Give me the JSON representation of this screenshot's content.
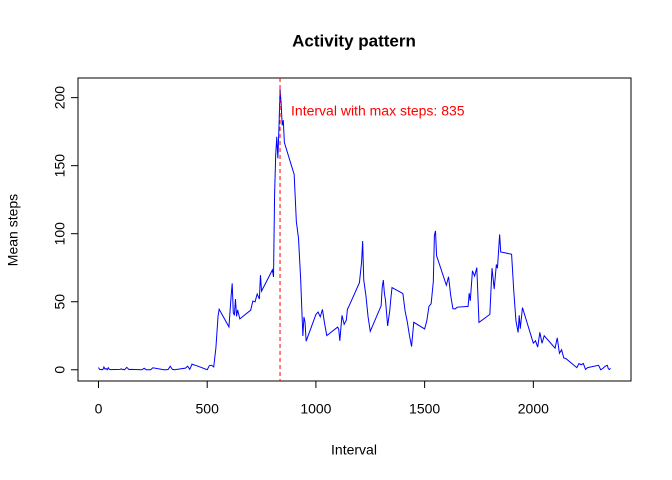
{
  "chart_data": {
    "type": "line",
    "title": "Activity pattern",
    "x_label": "Interval",
    "y_label": "Mean steps",
    "x": [
      0,
      5,
      10,
      15,
      20,
      25,
      30,
      35,
      40,
      45,
      50,
      55,
      100,
      105,
      110,
      115,
      120,
      130,
      140,
      150,
      200,
      210,
      220,
      230,
      240,
      250,
      300,
      310,
      320,
      330,
      340,
      350,
      400,
      410,
      420,
      430,
      440,
      450,
      500,
      510,
      520,
      530,
      540,
      550,
      555,
      600,
      610,
      615,
      620,
      625,
      630,
      635,
      640,
      650,
      700,
      710,
      720,
      730,
      740,
      745,
      750,
      800,
      805,
      810,
      815,
      820,
      825,
      830,
      835,
      840,
      845,
      850,
      855,
      900,
      910,
      920,
      930,
      935,
      940,
      945,
      950,
      955,
      1000,
      1010,
      1020,
      1030,
      1040,
      1050,
      1100,
      1105,
      1110,
      1120,
      1130,
      1140,
      1145,
      1150,
      1200,
      1210,
      1215,
      1220,
      1230,
      1240,
      1250,
      1300,
      1305,
      1310,
      1315,
      1320,
      1330,
      1340,
      1345,
      1350,
      1400,
      1410,
      1420,
      1430,
      1440,
      1450,
      1500,
      1510,
      1520,
      1530,
      1540,
      1545,
      1550,
      1555,
      1600,
      1610,
      1620,
      1630,
      1640,
      1650,
      1700,
      1705,
      1710,
      1720,
      1730,
      1740,
      1750,
      1800,
      1810,
      1820,
      1830,
      1835,
      1845,
      1850,
      1900,
      1910,
      1920,
      1930,
      1935,
      1940,
      1950,
      2000,
      2010,
      2020,
      2030,
      2040,
      2050,
      2100,
      2110,
      2120,
      2130,
      2140,
      2150,
      2200,
      2210,
      2220,
      2230,
      2240,
      2250,
      2300,
      2310,
      2320,
      2330,
      2340,
      2345,
      2350,
      2355
    ],
    "series": [
      {
        "name": "Mean steps",
        "color": "#0000ff",
        "values": [
          1.7,
          0.3,
          0.1,
          0.2,
          0.1,
          2.1,
          0.5,
          0.9,
          0,
          1.5,
          0.3,
          0.1,
          0.3,
          0.7,
          0.2,
          0.3,
          0,
          1.8,
          0.2,
          0.3,
          0,
          1.1,
          0,
          0,
          0,
          1.5,
          0,
          0,
          0.2,
          2.6,
          0.3,
          0,
          1.2,
          2.6,
          0.3,
          4.1,
          3.5,
          3.1,
          0,
          3.0,
          3.3,
          2.1,
          16,
          39.5,
          44.5,
          31.5,
          54,
          63.5,
          42,
          40,
          52,
          39.3,
          44,
          37.4,
          43.8,
          50.5,
          49.9,
          55.7,
          52,
          69.5,
          57.8,
          73.4,
          68.2,
          128.9,
          157.5,
          171.2,
          155.4,
          177.3,
          206.2,
          195.9,
          179.6,
          183.4,
          167,
          143.5,
          109,
          96.5,
          66.2,
          45.2,
          24.8,
          38.8,
          34.9,
          21,
          40.6,
          42.4,
          38.9,
          44.3,
          34,
          25.1,
          31.4,
          29.7,
          21.3,
          40,
          33.4,
          36.5,
          44.6,
          46,
          63.9,
          78.9,
          94.6,
          66,
          54.5,
          38.8,
          28.3,
          47,
          60.8,
          65.9,
          56.2,
          51.2,
          32.2,
          44,
          53,
          60.4,
          56,
          43.3,
          35.5,
          25.4,
          17.1,
          34.9,
          30,
          35.9,
          46.6,
          48.6,
          64.7,
          98.7,
          102.1,
          83.9,
          62.1,
          68.4,
          54.5,
          44.9,
          44.7,
          46,
          46.6,
          56.3,
          50.7,
          72.7,
          68.9,
          75.1,
          34.8,
          40.7,
          74.7,
          59.3,
          77.4,
          74.6,
          99.5,
          86.6,
          84.9,
          58,
          36.1,
          27.4,
          40,
          30.2,
          45.7,
          19.6,
          21.3,
          16.7,
          27.5,
          19.5,
          25,
          15.9,
          23.5,
          12.1,
          14.7,
          8.7,
          8.2,
          1.6,
          4.6,
          3.7,
          4.6,
          0.3,
          1.6,
          3.3,
          0,
          1,
          2.6,
          3.3,
          0.7,
          0.2,
          1.1
        ]
      }
    ],
    "annotation": {
      "text": "Interval with max steps: 835",
      "x": 835,
      "color": "#ff0000"
    },
    "xlim": [
      -94.2,
      2449.2
    ],
    "xticks": [
      0,
      500,
      1000,
      1500,
      2000
    ],
    "ylim": [
      -8.25,
      214.42
    ],
    "yticks": [
      0,
      50,
      100,
      150,
      200
    ]
  }
}
